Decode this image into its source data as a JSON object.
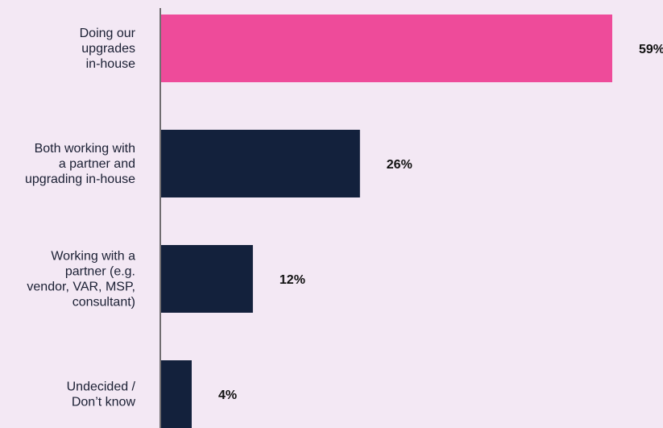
{
  "colors": {
    "background": "#f3e8f4",
    "highlight_bar": "#ee4b9a",
    "default_bar": "#13213c",
    "axis": "#444444"
  },
  "chart_data": {
    "type": "bar",
    "orientation": "horizontal",
    "categories": [
      [
        "Doing our",
        "upgrades",
        "in-house"
      ],
      [
        "Both working with",
        "a partner and",
        "upgrading in-house"
      ],
      [
        "Working with a",
        "partner (e.g.",
        "vendor, VAR, MSP,",
        "consultant)"
      ],
      [
        "Undecided /",
        "Don’t know"
      ]
    ],
    "values": [
      59,
      26,
      12,
      4
    ],
    "value_labels": [
      "59%",
      "26%",
      "12%",
      "4%"
    ],
    "highlight_index": 0,
    "xlim": [
      0,
      59
    ],
    "title": "",
    "xlabel": "",
    "ylabel": "",
    "grid": false,
    "legend": "none"
  }
}
